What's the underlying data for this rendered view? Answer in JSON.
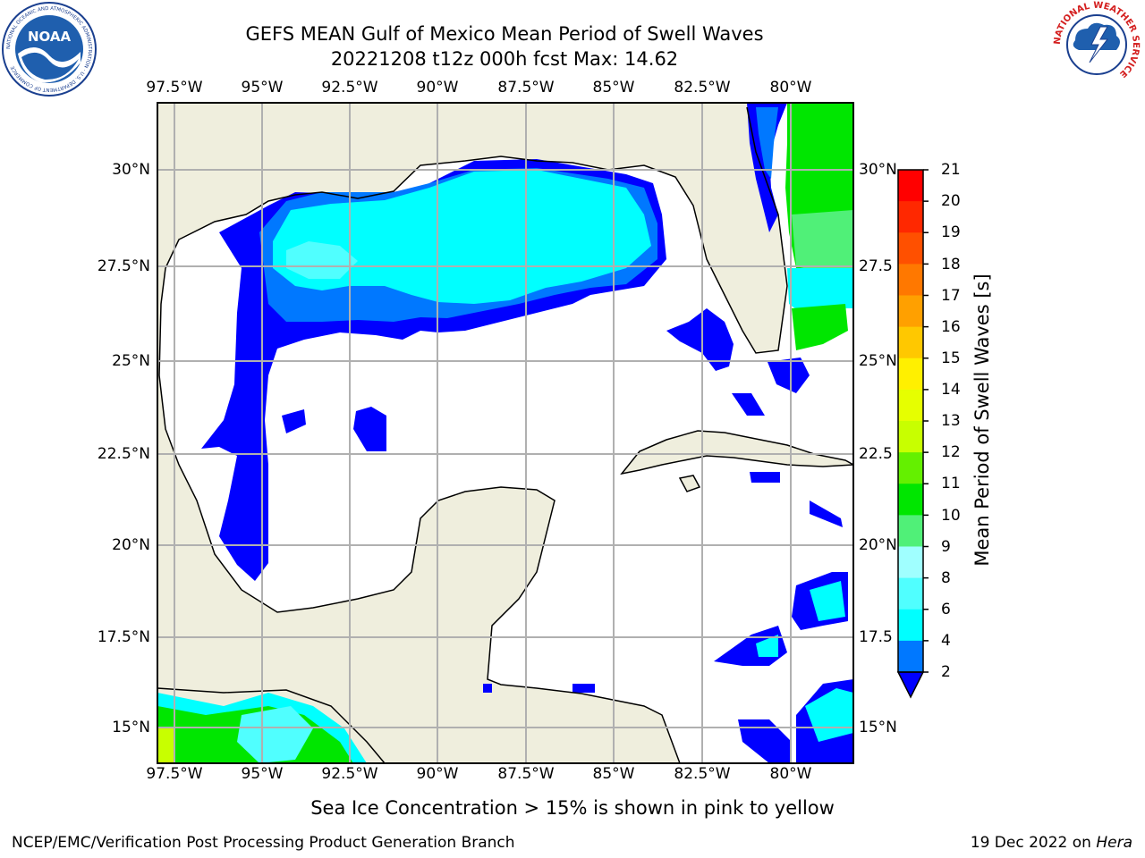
{
  "title": {
    "line1": "GEFS MEAN Gulf of Mexico Mean Period of Swell Waves",
    "line2": "20221208 t12z 000h fcst   Max: 14.62"
  },
  "map": {
    "lon_labels": [
      "97.5°W",
      "95°W",
      "92.5°W",
      "90°W",
      "87.5°W",
      "85°W",
      "82.5°W",
      "80°W"
    ],
    "lat_labels_left": [
      "30°N",
      "27.5°N",
      "25°N",
      "22.5°N",
      "20°N",
      "17.5°N",
      "15°N"
    ],
    "lat_labels_right": [
      "30°N",
      "27.5",
      "25°N",
      "22.5",
      "20°N",
      "17.5",
      "15°N"
    ],
    "colors": {
      "land": "#efeedd",
      "ocean": "#ffffff",
      "grid": "#b0b0b0",
      "coast": "#000000"
    }
  },
  "colorbar": {
    "label": "Mean Period of Swell Waves [s]",
    "ticks": [
      "21",
      "20",
      "19",
      "18",
      "17",
      "16",
      "15",
      "14",
      "13",
      "12",
      "11",
      "10",
      "9",
      "8",
      "6",
      "4",
      "2"
    ],
    "colors": [
      "#ff0000",
      "#ff2800",
      "#ff5000",
      "#ff7800",
      "#ffa000",
      "#ffc800",
      "#fff000",
      "#e6ff00",
      "#c8ff00",
      "#64f000",
      "#00e600",
      "#50f078",
      "#a0ffff",
      "#50ffff",
      "#00ffff",
      "#0078ff",
      "#0000ff"
    ]
  },
  "footer": {
    "note": "Sea Ice Concentration > 15% is shown in pink to yellow",
    "left": "NCEP/EMC/Verification Post Processing Product Generation Branch",
    "date": "19 Dec 2022 on",
    "machine": "Hera"
  },
  "logos": {
    "noaa_text": "NOAA",
    "noaa_ring": "NATIONAL OCEANIC AND ATMOSPHERIC ADMINISTRATION · U.S. DEPARTMENT OF COMMERCE",
    "nws_ring": "NATIONAL WEATHER SERVICE"
  }
}
